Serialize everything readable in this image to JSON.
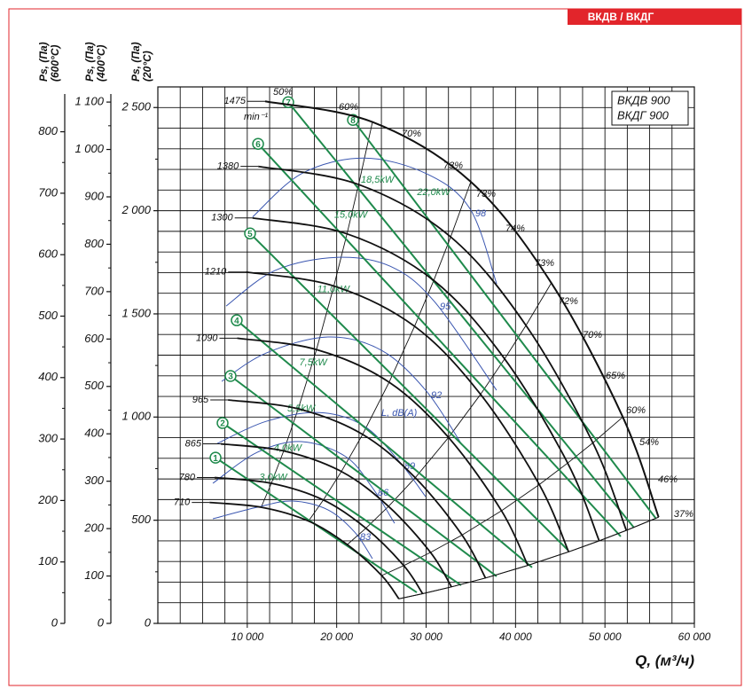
{
  "chart_data": {
    "type": "line",
    "tag": "ВКДВ / ВКДГ",
    "legend": [
      "ВКДВ 900",
      "ВКДГ 900"
    ],
    "xlabel": "Q, (м³/ч)",
    "xlim": [
      0,
      60000
    ],
    "xticks": [
      {
        "value": 10000,
        "label": "10 000"
      },
      {
        "value": 20000,
        "label": "20 000"
      },
      {
        "value": 30000,
        "label": "30 000"
      },
      {
        "value": 40000,
        "label": "40 000"
      },
      {
        "value": 50000,
        "label": "50 000"
      },
      {
        "value": 60000,
        "label": "60 000"
      }
    ],
    "grid": true,
    "x_grid_step": 2500,
    "y_grid_step": 100,
    "y_axes": [
      {
        "title": "Ps, (Па)",
        "subtitle": "(20°C)",
        "lim": [
          0,
          2600
        ],
        "ticks": [
          0,
          500,
          {
            "value": 1000,
            "label": "1 000"
          },
          {
            "value": 1500,
            "label": "1 500"
          },
          {
            "value": 2000,
            "label": "2 000"
          },
          {
            "value": 2500,
            "label": "2 500"
          }
        ]
      },
      {
        "title": "Ps, (Па)",
        "subtitle": "(400°C)",
        "lim": [
          0,
          1132
        ],
        "ticks": [
          0,
          100,
          200,
          300,
          400,
          500,
          600,
          700,
          800,
          900,
          {
            "value": 1000,
            "label": "1 000"
          },
          {
            "value": 1100,
            "label": "1 100"
          }
        ]
      },
      {
        "title": "Ps, (Па)",
        "subtitle": "(600°C)",
        "lim": [
          0,
          873
        ],
        "ticks": [
          0,
          100,
          200,
          300,
          400,
          500,
          600,
          700,
          800
        ]
      }
    ],
    "speed_unit": "min⁻¹",
    "speed_unit_pos": [
      9620,
      2453
    ],
    "speeds": [
      {
        "name": "1475",
        "color": "#111111",
        "x": [
          12000,
          24000,
          35000,
          44000,
          52000,
          56000
        ],
        "y": [
          2530,
          2430,
          2140,
          1650,
          1000,
          515
        ]
      },
      {
        "name": "1380",
        "color": "#111111",
        "x": [
          11230,
          22450,
          32750,
          41170,
          48650,
          52390
        ],
        "y": [
          2215,
          2127,
          1873,
          1444,
          875,
          451
        ]
      },
      {
        "name": "1300",
        "color": "#111111",
        "x": [
          10580,
          21150,
          30850,
          38780,
          45830,
          49360
        ],
        "y": [
          1965,
          1888,
          1662,
          1282,
          777,
          400
        ]
      },
      {
        "name": "1210",
        "color": "#111111",
        "x": [
          9840,
          19690,
          28710,
          36090,
          42660,
          45940
        ],
        "y": [
          1703,
          1635,
          1440,
          1110,
          673,
          347
        ]
      },
      {
        "name": "1090",
        "color": "#111111",
        "x": [
          8870,
          17740,
          25860,
          32510,
          38430,
          41380
        ],
        "y": [
          1382,
          1327,
          1169,
          901,
          546,
          281
        ]
      },
      {
        "name": "965",
        "color": "#111111",
        "x": [
          7850,
          15700,
          22900,
          28790,
          34020,
          36640
        ],
        "y": [
          1083,
          1040,
          916,
          706,
          428,
          220
        ]
      },
      {
        "name": "865",
        "color": "#111111",
        "x": [
          7040,
          14070,
          20530,
          25800,
          30490,
          32840
        ],
        "y": [
          870,
          836,
          736,
          567,
          344,
          177
        ]
      },
      {
        "name": "780",
        "color": "#111111",
        "x": [
          6350,
          12690,
          18510,
          23270,
          27500,
          29610
        ],
        "y": [
          707,
          679,
          598,
          461,
          280,
          144
        ]
      },
      {
        "name": "710",
        "color": "#111111",
        "x": [
          5780,
          11550,
          16850,
          21180,
          25030,
          26960
        ],
        "y": [
          586,
          563,
          496,
          382,
          232,
          119
        ]
      }
    ],
    "power": [
      {
        "name": "3,0kW",
        "motor": "1",
        "color": "#1f8a4c",
        "x": [
          6450,
          28960
        ],
        "y": [
          803,
          150
        ]
      },
      {
        "name": "4,0kW",
        "motor": "2",
        "color": "#1f8a4c",
        "x": [
          7240,
          33920
        ],
        "y": [
          971,
          185
        ]
      },
      {
        "name": "5,5kW",
        "motor": "3",
        "color": "#1f8a4c",
        "x": [
          8130,
          37880
        ],
        "y": [
          1199,
          228
        ]
      },
      {
        "name": "7,5kW",
        "motor": "4",
        "color": "#1f8a4c",
        "x": [
          8820,
          41850
        ],
        "y": [
          1469,
          271
        ]
      },
      {
        "name": "11,0kW",
        "motor": "5",
        "color": "#1f8a4c",
        "x": [
          10310,
          45820
        ],
        "y": [
          1890,
          357
        ]
      },
      {
        "name": "15,0kW",
        "motor": "6",
        "color": "#1f8a4c",
        "x": [
          11210,
          51770
        ],
        "y": [
          2324,
          421
        ]
      },
      {
        "name": "18,5kW",
        "motor": "7",
        "color": "#1f8a4c",
        "x": [
          14580,
          53250
        ],
        "y": [
          2526,
          464
        ]
      },
      {
        "name": "22,0kW",
        "motor": "8",
        "color": "#1f8a4c",
        "x": [
          21820,
          55730
        ],
        "y": [
          2440,
          507
        ]
      }
    ],
    "noise_label": "L, dB(A)",
    "noise_label_pos": [
      24990,
      1018
    ],
    "noise": [
      {
        "name": "83",
        "color": "#3a56b0",
        "x": [
          6150,
          11110,
          15070,
          19040,
          22020,
          24000
        ],
        "y": [
          507,
          563,
          593,
          550,
          442,
          314
        ]
      },
      {
        "name": "86",
        "color": "#3a56b0",
        "x": [
          6150,
          11110,
          16070,
          21020,
          24000,
          26480
        ],
        "y": [
          679,
          829,
          881,
          808,
          657,
          485
        ]
      },
      {
        "name": "89",
        "color": "#3a56b0",
        "x": [
          6640,
          12100,
          18050,
          23010,
          26970,
          29950
        ],
        "y": [
          872,
          979,
          1022,
          958,
          786,
          614
        ]
      },
      {
        "name": "92",
        "color": "#3a56b0",
        "x": [
          7140,
          12100,
          19040,
          24990,
          29950,
          33920
        ],
        "y": [
          1173,
          1310,
          1388,
          1324,
          1130,
          872
        ]
      },
      {
        "name": "95",
        "color": "#3a56b0",
        "x": [
          7640,
          13090,
          20030,
          25980,
          30940,
          37880
        ],
        "y": [
          1538,
          1710,
          1774,
          1731,
          1559,
          1130
        ]
      },
      {
        "name": "98",
        "color": "#3a56b0",
        "x": [
          10600,
          16100,
          23000,
          30000,
          34900,
          37900
        ],
        "y": [
          1970,
          2180,
          2255,
          2180,
          2010,
          1645
        ]
      }
    ],
    "annotations": [
      {
        "text": "50%",
        "x": 12890,
        "y": 2573
      },
      {
        "text": "60%",
        "x": 20230,
        "y": 2500
      },
      {
        "text": "70%",
        "x": 27270,
        "y": 2371
      },
      {
        "text": "73%",
        "x": 31930,
        "y": 2217
      },
      {
        "text": "73%",
        "x": 35600,
        "y": 2079
      },
      {
        "text": "74%",
        "x": 38870,
        "y": 1912
      },
      {
        "text": "73%",
        "x": 42150,
        "y": 1744
      },
      {
        "text": "72%",
        "x": 44820,
        "y": 1560
      },
      {
        "text": "70%",
        "x": 47500,
        "y": 1396
      },
      {
        "text": "65%",
        "x": 50080,
        "y": 1199
      },
      {
        "text": "60%",
        "x": 52360,
        "y": 1031
      },
      {
        "text": "54%",
        "x": 53850,
        "y": 876
      },
      {
        "text": "46%",
        "x": 55930,
        "y": 696
      },
      {
        "text": "37%",
        "x": 57710,
        "y": 528
      }
    ]
  }
}
